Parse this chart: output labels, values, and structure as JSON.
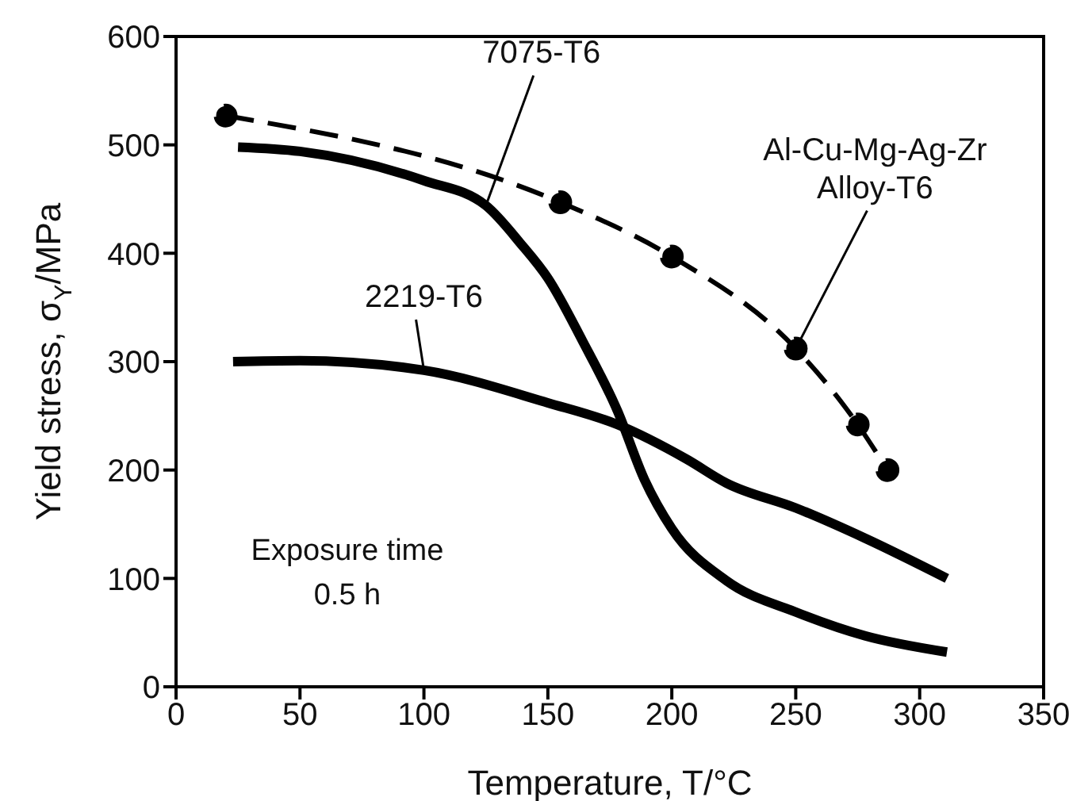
{
  "chart_data": {
    "type": "line",
    "xlabel": "Temperature, T/°C",
    "ylabel": "Yield stress, σ$_{Y}$/MPa",
    "xlim": [
      0,
      350
    ],
    "ylim": [
      0,
      600
    ],
    "xticks": [
      0,
      50,
      100,
      150,
      200,
      250,
      300,
      350
    ],
    "yticks": [
      0,
      100,
      200,
      300,
      400,
      500,
      600
    ],
    "annotations": [
      "Exposure time 0.5 h"
    ],
    "series": [
      {
        "name": "7075-T6",
        "color": "#000000",
        "line_style": "solid",
        "marker": "none",
        "x": [
          25,
          50,
          100,
          125,
          139,
          150,
          164,
          178,
          189,
          200,
          222,
          250,
          278,
          311
        ],
        "values": [
          498,
          494,
          467,
          444,
          409,
          377,
          319,
          255,
          191,
          146,
          98,
          69,
          47,
          32
        ]
      },
      {
        "name": "2219-T6",
        "color": "#000000",
        "line_style": "solid",
        "marker": "none",
        "x": [
          23,
          50,
          100,
          150,
          178,
          206,
          222,
          250,
          278,
          311
        ],
        "values": [
          300,
          301,
          292,
          262,
          242,
          210,
          188,
          165,
          137,
          100
        ]
      },
      {
        "name": "Al-Cu-Mg-Ag-Zr Alloy-T6",
        "color": "#000000",
        "line_style": "dashed",
        "marker": "circle",
        "x": [
          20,
          155,
          200,
          250,
          275,
          287
        ],
        "values": [
          527,
          447,
          397,
          312,
          242,
          200
        ]
      }
    ]
  }
}
